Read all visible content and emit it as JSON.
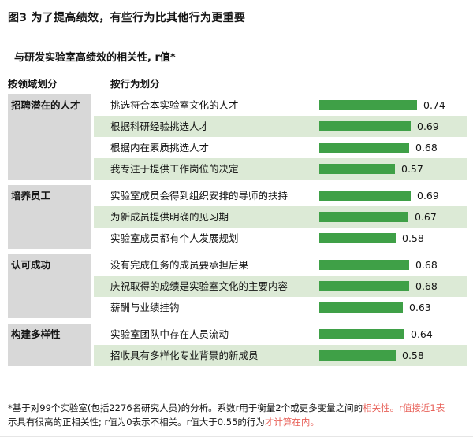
{
  "chart_data": {
    "type": "bar",
    "orientation": "horizontal",
    "title": "图3 为了提高绩效，有些行为比其他行为更重要",
    "subtitle": "与研发实验室高绩效的相关性, r值*",
    "column_headers": {
      "domain": "按领域划分",
      "behavior": "按行为划分"
    },
    "xlim": [
      0,
      0.8
    ],
    "legend": "none",
    "grid": false,
    "groups": [
      {
        "category": "招聘潜在的人才",
        "items": [
          {
            "label": "挑选符合本实验室文化的人才",
            "value": 0.74
          },
          {
            "label": "根据科研经验挑选人才",
            "value": 0.69
          },
          {
            "label": "根据内在素质挑选人才",
            "value": 0.68
          },
          {
            "label": "我专注于提供工作岗位的决定",
            "value": 0.57
          }
        ]
      },
      {
        "category": "培养员工",
        "items": [
          {
            "label": "实验室成员会得到组织安排的导师的扶持",
            "value": 0.69
          },
          {
            "label": "为新成员提供明确的见习期",
            "value": 0.67
          },
          {
            "label": "实验室成员都有个人发展规划",
            "value": 0.58
          }
        ]
      },
      {
        "category": "认可成功",
        "items": [
          {
            "label": "没有完成任务的成员要承担后果",
            "value": 0.68
          },
          {
            "label": "庆祝取得的成绩是实验室文化的主要内容",
            "value": 0.68
          },
          {
            "label": "薪酬与业绩挂钩",
            "value": 0.63
          }
        ]
      },
      {
        "category": "构建多样性",
        "items": [
          {
            "label": "实验室团队中存在人员流动",
            "value": 0.64
          },
          {
            "label": "招收具有多样化专业背景的新成员",
            "value": 0.58
          }
        ]
      }
    ]
  },
  "footnote": {
    "lines": [
      [
        {
          "text": "*基于对99个实验室(包括2276名研究人员)的分析。系数r用于衡量2个或更多变量之间的",
          "red": false
        },
        {
          "text": "相关性。r值接近1表",
          "red": true
        }
      ],
      [
        {
          "text": "示具有很高的正相关性; r值为0表示不相关。r值大于0.55的行为",
          "red": false
        },
        {
          "text": "才计算在内。",
          "red": true
        }
      ]
    ]
  },
  "colors": {
    "bar": "#3fa047",
    "row_alt": "#dcead6",
    "category_bg": "#d8d8d8",
    "footnote_red": "#e8625a"
  }
}
